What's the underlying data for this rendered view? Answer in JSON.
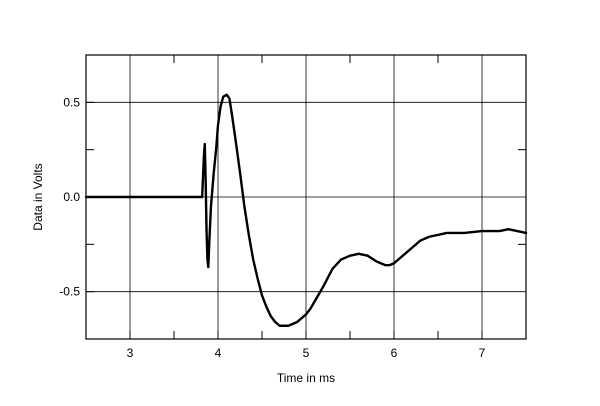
{
  "chart_data": {
    "type": "line",
    "title": "",
    "xlabel": "Time in ms",
    "ylabel": "Data in Volts",
    "xlim": [
      2.5,
      7.5
    ],
    "ylim": [
      -0.75,
      0.75
    ],
    "grid": true,
    "legend": "none",
    "line_color": "#000000",
    "x_ticks": [
      3,
      4,
      5,
      6,
      7
    ],
    "x_tick_labels": [
      "3",
      "4",
      "5",
      "6",
      "7"
    ],
    "y_ticks": [
      0.5,
      0.0,
      -0.5
    ],
    "y_tick_labels": [
      "0.5",
      "0.0",
      "-0.5"
    ],
    "series": [
      {
        "x": [
          2.5,
          3.0,
          3.5,
          3.78,
          3.82,
          3.84,
          3.85,
          3.86,
          3.87,
          3.88,
          3.89,
          3.9,
          3.92,
          3.95,
          3.98,
          4.0,
          4.03,
          4.06,
          4.1,
          4.13,
          4.16,
          4.2,
          4.25,
          4.3,
          4.35,
          4.4,
          4.45,
          4.5,
          4.55,
          4.6,
          4.65,
          4.7,
          4.75,
          4.8,
          4.85,
          4.9,
          4.95,
          5.0,
          5.05,
          5.1,
          5.2,
          5.3,
          5.4,
          5.5,
          5.6,
          5.7,
          5.8,
          5.9,
          5.95,
          6.0,
          6.1,
          6.2,
          6.3,
          6.4,
          6.5,
          6.6,
          6.8,
          7.0,
          7.2,
          7.3,
          7.4,
          7.5
        ],
        "y": [
          0.0,
          0.0,
          0.0,
          0.0,
          0.0,
          0.22,
          0.28,
          0.08,
          -0.18,
          -0.33,
          -0.37,
          -0.25,
          -0.05,
          0.12,
          0.26,
          0.38,
          0.48,
          0.53,
          0.54,
          0.52,
          0.43,
          0.3,
          0.13,
          -0.05,
          -0.2,
          -0.33,
          -0.43,
          -0.52,
          -0.58,
          -0.63,
          -0.66,
          -0.68,
          -0.68,
          -0.68,
          -0.67,
          -0.66,
          -0.64,
          -0.62,
          -0.59,
          -0.55,
          -0.47,
          -0.38,
          -0.33,
          -0.31,
          -0.3,
          -0.31,
          -0.34,
          -0.36,
          -0.36,
          -0.35,
          -0.31,
          -0.27,
          -0.23,
          -0.21,
          -0.2,
          -0.19,
          -0.19,
          -0.18,
          -0.18,
          -0.17,
          -0.18,
          -0.19
        ]
      }
    ]
  }
}
